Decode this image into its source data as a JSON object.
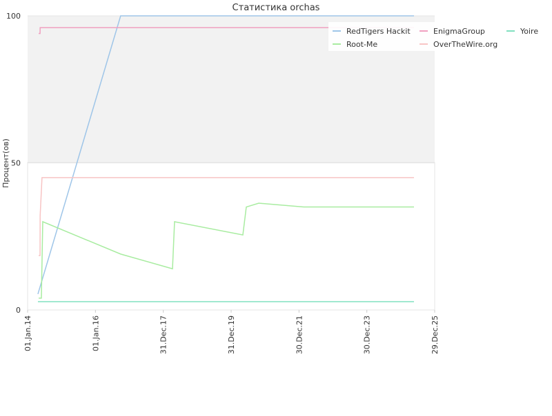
{
  "chart_data": {
    "type": "line",
    "title": "Статистика orchas",
    "ylabel": "Процент(ов)",
    "xlim": [
      "2014-01-01",
      "2025-12-29"
    ],
    "xticks": [
      {
        "value": "2014-01-01",
        "label": "01.Jan.14"
      },
      {
        "value": "2016-01-01",
        "label": "01.Jan.16"
      },
      {
        "value": "2017-12-31",
        "label": "31.Dec.17"
      },
      {
        "value": "2019-12-31",
        "label": "31.Dec.19"
      },
      {
        "value": "2021-12-30",
        "label": "30.Dec.21"
      },
      {
        "value": "2023-12-30",
        "label": "30.Dec.23"
      },
      {
        "value": "2025-12-29",
        "label": "29.Dec.25"
      }
    ],
    "ylim": [
      0,
      100
    ],
    "yticks": [
      0,
      50,
      100
    ],
    "legend": "top-right",
    "series": [
      {
        "name": "RedTigers Hackit",
        "color": "#9ec5e8",
        "x": [
          "2014-04-22",
          "2016-09-28",
          "2025-05-20"
        ],
        "values": [
          5.4,
          100,
          100
        ]
      },
      {
        "name": "Root-Me",
        "color": "#a8eca0",
        "x": [
          "2014-04-30",
          "2014-05-29",
          "2014-06-13",
          "2016-09-28",
          "2018-04-09",
          "2018-05-01",
          "2020-05-05",
          "2020-06-11",
          "2020-10-23",
          "2022-02-18",
          "2025-05-20"
        ],
        "values": [
          4,
          4,
          30,
          19,
          14,
          30,
          25.5,
          35,
          36.3,
          35,
          35
        ]
      },
      {
        "name": "EnigmaGroup",
        "color": "#f0a0c0",
        "x": [
          "2014-04-30",
          "2014-05-15",
          "2014-05-16",
          "2025-05-20"
        ],
        "values": [
          94,
          94,
          96,
          96
        ]
      },
      {
        "name": "OverTheWire.org",
        "color": "#f8c4c4",
        "x": [
          "2014-04-30",
          "2014-05-15",
          "2014-05-16",
          "2014-06-05",
          "2025-05-20"
        ],
        "values": [
          18.5,
          18.5,
          32,
          45,
          45
        ]
      },
      {
        "name": "Yoire",
        "color": "#80e0c0",
        "x": [
          "2014-04-22",
          "2025-05-20"
        ],
        "values": [
          2.8,
          2.8
        ]
      }
    ]
  }
}
